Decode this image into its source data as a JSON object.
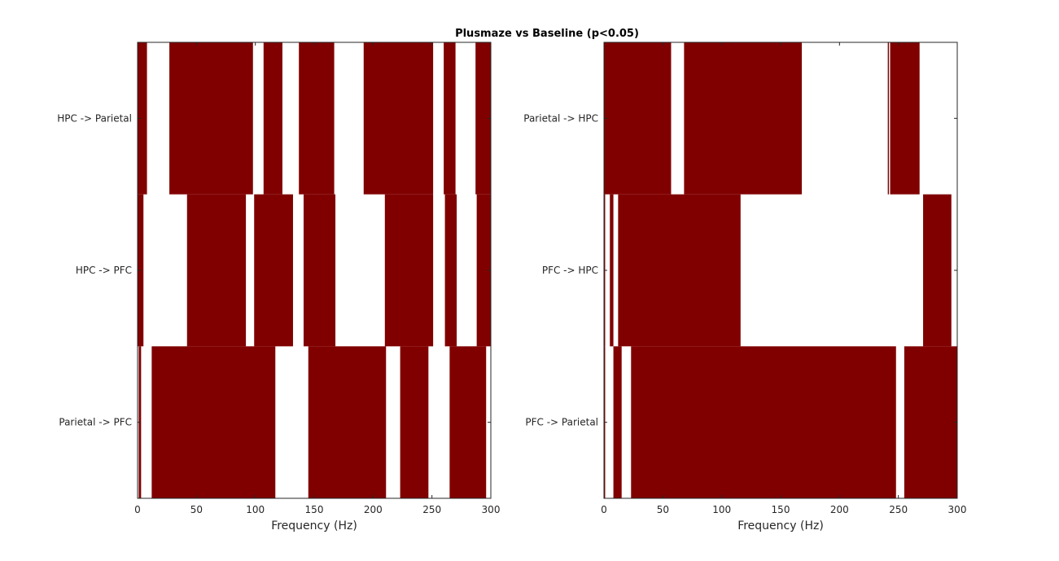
{
  "chart_data": [
    {
      "type": "heatmap",
      "title": "Plusmaze vs Baseline (p<0.05)",
      "xlabel": "Frequency (Hz)",
      "ylabel": "",
      "xlim": [
        0,
        300
      ],
      "xticks": [
        0,
        50,
        100,
        150,
        200,
        250,
        300
      ],
      "colors": {
        "significant": "#800000",
        "not_significant": "#ffffff"
      },
      "rows": [
        {
          "label": "HPC -> Parietal",
          "significant_ranges": [
            [
              0,
              8
            ],
            [
              27,
              98
            ],
            [
              107,
              123
            ],
            [
              137,
              167
            ],
            [
              192,
              251
            ],
            [
              260,
              270
            ],
            [
              287,
              300
            ]
          ]
        },
        {
          "label": "HPC -> PFC",
          "significant_ranges": [
            [
              0,
              5
            ],
            [
              42,
              92
            ],
            [
              99,
              132
            ],
            [
              141,
              168
            ],
            [
              210,
              251
            ],
            [
              261,
              271
            ],
            [
              288,
              300
            ]
          ]
        },
        {
          "label": "Parietal -> PFC",
          "significant_ranges": [
            [
              1,
              3
            ],
            [
              12,
              117
            ],
            [
              145,
              211
            ],
            [
              223,
              247
            ],
            [
              265,
              296
            ]
          ]
        }
      ]
    },
    {
      "type": "heatmap",
      "title": "",
      "xlabel": "Frequency (Hz)",
      "ylabel": "",
      "xlim": [
        0,
        300
      ],
      "xticks": [
        0,
        50,
        100,
        150,
        200,
        250,
        300
      ],
      "colors": {
        "significant": "#800000",
        "not_significant": "#ffffff"
      },
      "rows": [
        {
          "label": "Parietal -> HPC",
          "significant_ranges": [
            [
              0,
              57
            ],
            [
              68,
              168
            ],
            [
              241,
              242
            ],
            [
              243,
              268
            ]
          ]
        },
        {
          "label": "PFC -> HPC",
          "significant_ranges": [
            [
              0,
              1
            ],
            [
              5,
              8
            ],
            [
              12,
              116
            ],
            [
              271,
              295
            ]
          ]
        },
        {
          "label": "PFC -> Parietal",
          "significant_ranges": [
            [
              0,
              1
            ],
            [
              8,
              15
            ],
            [
              23,
              248
            ],
            [
              255,
              300
            ]
          ]
        }
      ]
    }
  ]
}
